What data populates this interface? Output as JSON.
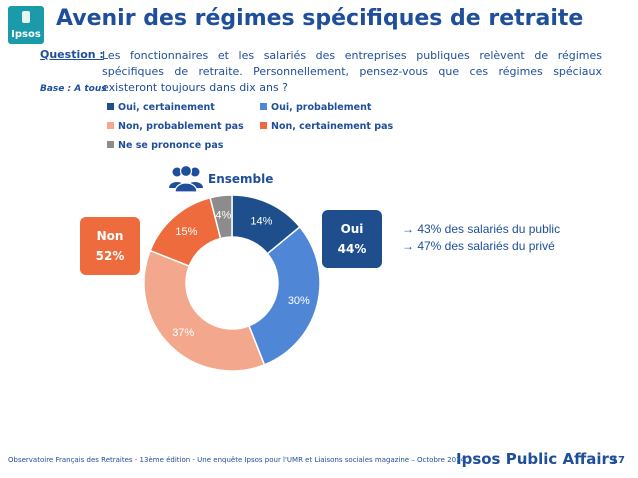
{
  "header": {
    "logo_text": "Ipsos",
    "title": "Avenir des régimes spécifiques de retraite"
  },
  "question": {
    "label": "Question :",
    "text": "Les fonctionnaires et les salariés des entreprises publiques relèvent de régimes spécifiques de retraite. Personnellement, pensez-vous que ces régimes spéciaux existeront toujours dans dix ans ?",
    "base": "Base : A tous"
  },
  "chart_data": {
    "type": "pie",
    "title": "Ensemble",
    "legend_position": "top",
    "series": [
      {
        "name": "Oui, certainement",
        "value": 14,
        "label": "14%",
        "color": "#1f4e8c"
      },
      {
        "name": "Oui, probablement",
        "value": 30,
        "label": "30%",
        "color": "#4f87d6"
      },
      {
        "name": "Non, probablement pas",
        "value": 37,
        "label": "37%",
        "color": "#f3a78c"
      },
      {
        "name": "Non, certainement pas",
        "value": 15,
        "label": "15%",
        "color": "#ed6b3c"
      },
      {
        "name": "Ne se prononce pas",
        "value": 4,
        "label": "4%",
        "color": "#8c8c8c"
      }
    ],
    "totals": {
      "non": {
        "label": "Non",
        "value": "52%"
      },
      "oui": {
        "label": "Oui",
        "value": "44%"
      }
    }
  },
  "annotations": {
    "line1": "→ 43% des salariés du public",
    "line2": "→ 47% des salariés du privé"
  },
  "footer": {
    "source": "Observatoire Français des Retraites - 13ème édition - Une enquête Ipsos pour  l'UMR et Liaisons sociales magazine – Octobre 2014",
    "brand": "Ipsos Public Affairs",
    "page": "17"
  }
}
